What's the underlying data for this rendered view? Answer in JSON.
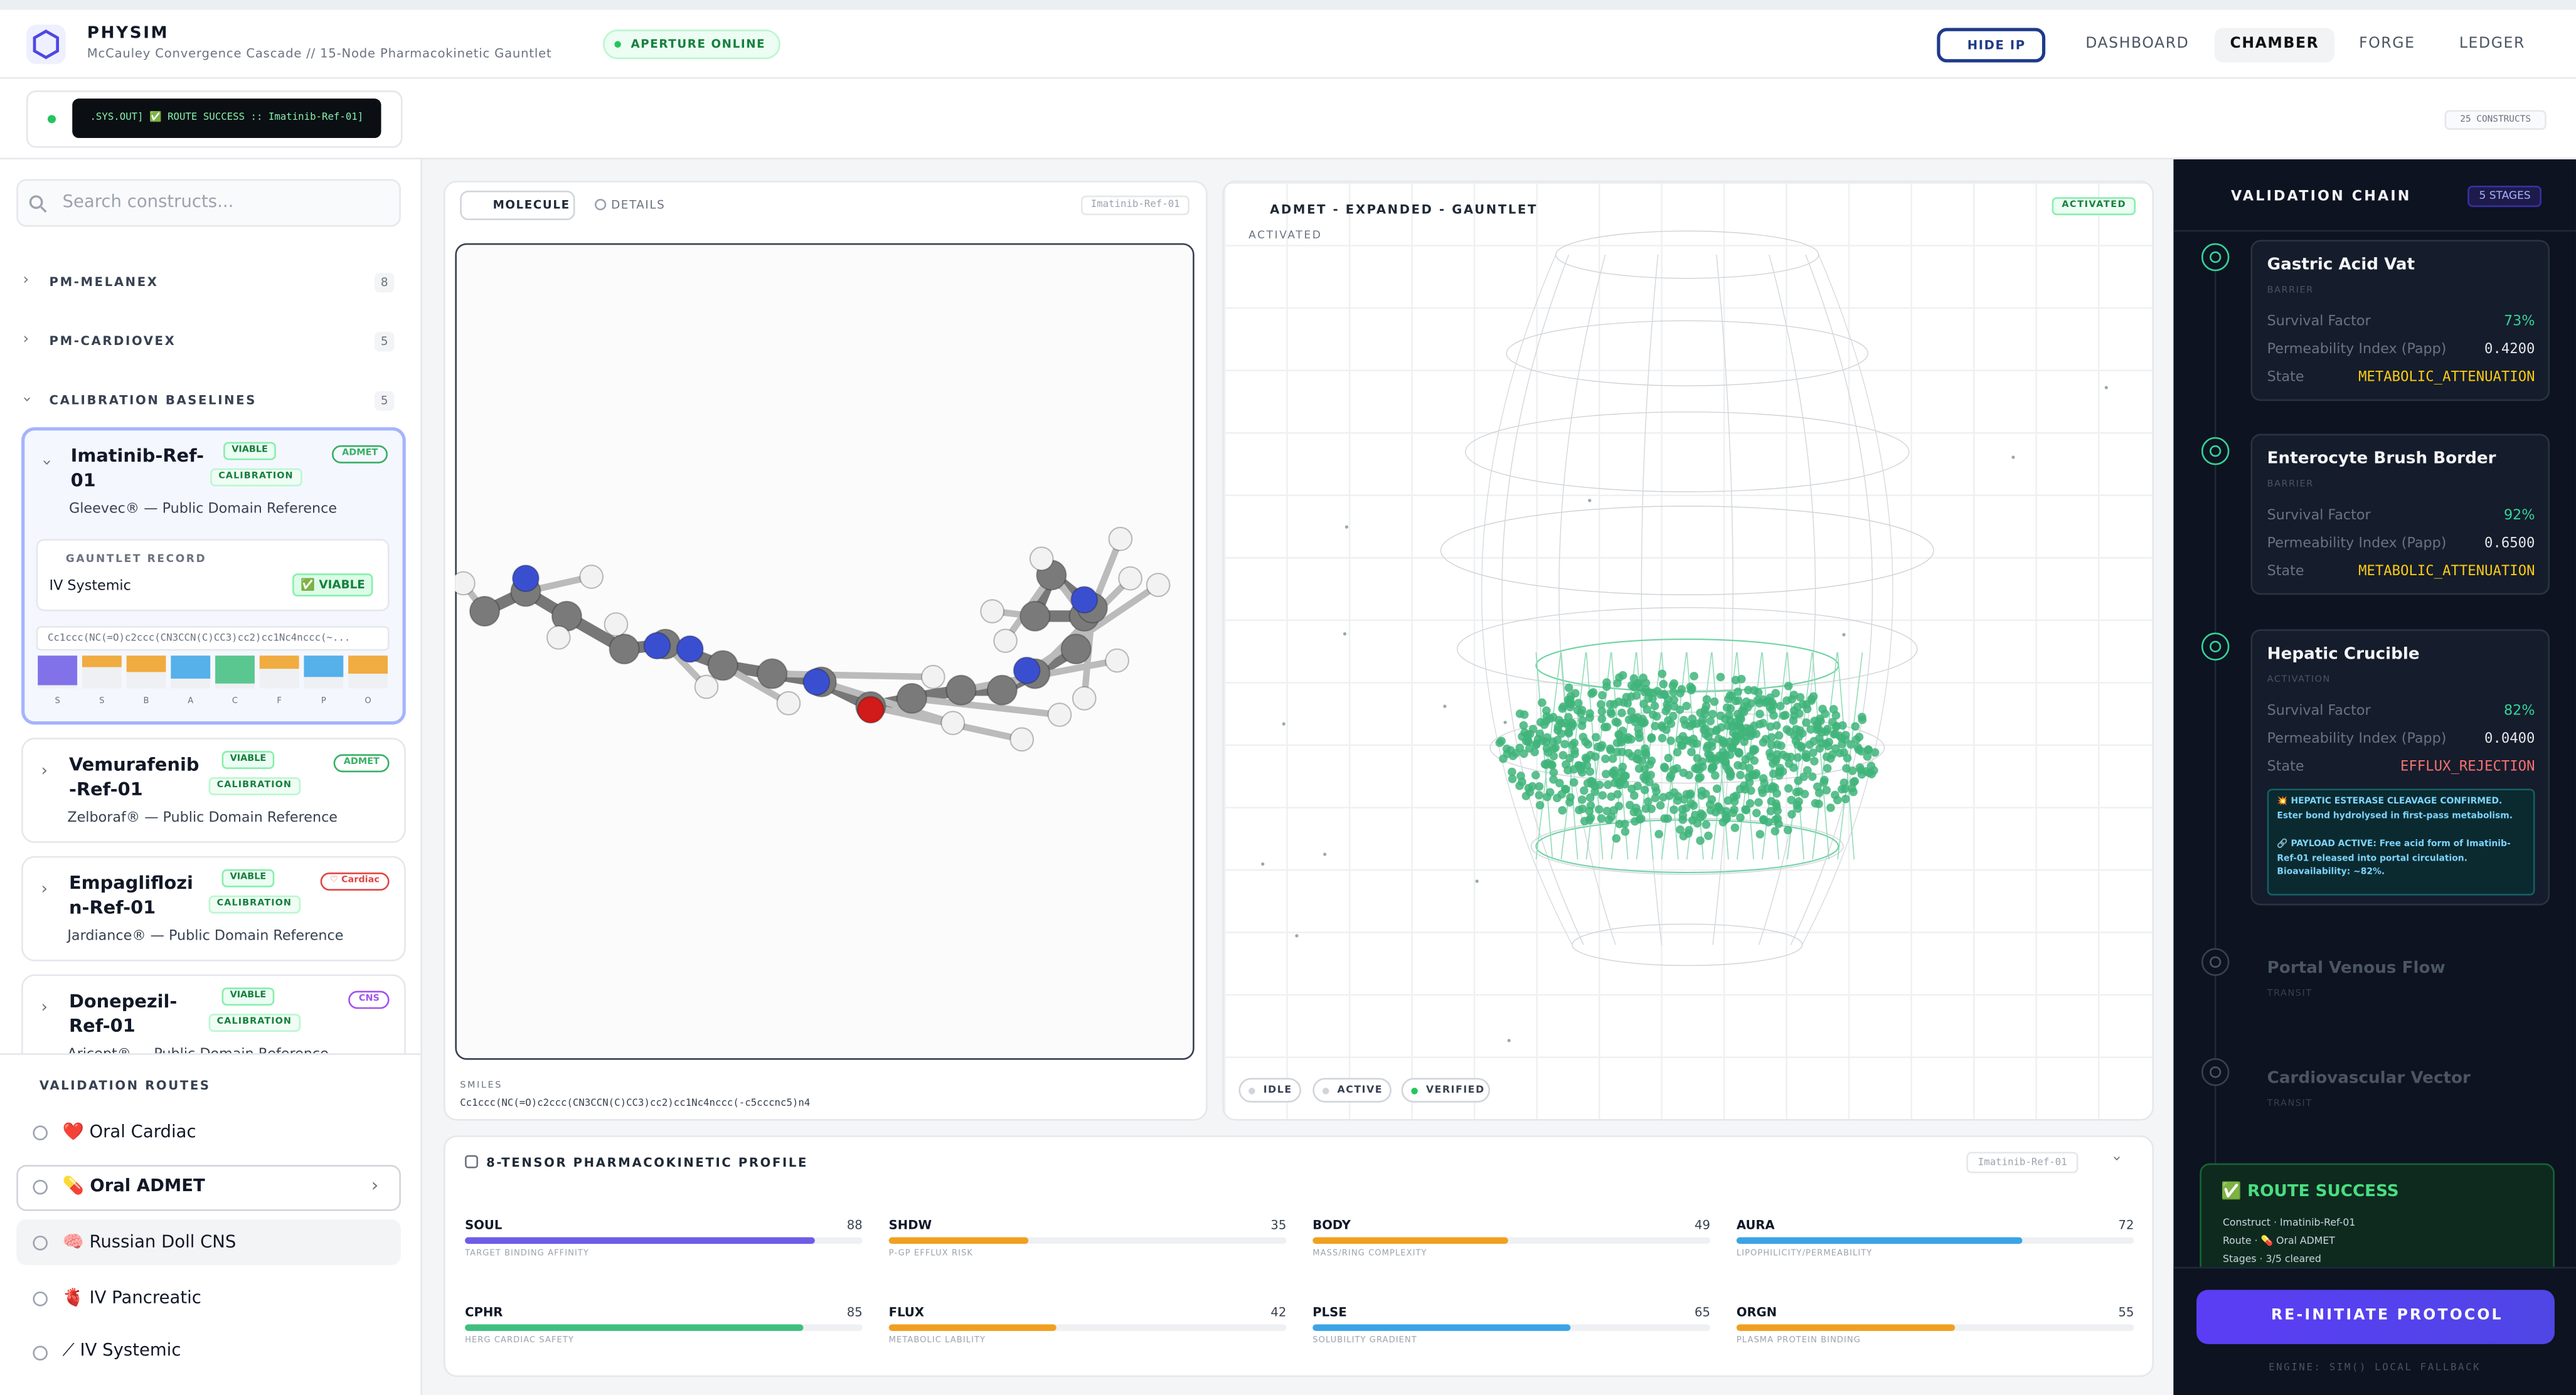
{
  "header": {
    "brand": "PHYSIM",
    "subtitle": "McCauley Convergence Cascade // 15-Node Pharmacokinetic Gauntlet",
    "status": "APERTURE ONLINE",
    "hide_ip": "HIDE IP",
    "nav": [
      "DASHBOARD",
      "CHAMBER",
      "FORGE",
      "LEDGER"
    ],
    "active_nav": 1
  },
  "console": {
    "message": ".SYS.OUT] ✅ ROUTE SUCCESS :: Imatinib-Ref-01]",
    "count": "25 CONSTRUCTS"
  },
  "sidebar": {
    "search_placeholder": "Search constructs...",
    "groups": [
      {
        "name": "PM-MELANEX",
        "count": 8
      },
      {
        "name": "PM-CARDIOVEX",
        "count": 5
      },
      {
        "name": "CALIBRATION BASELINES",
        "count": 5
      }
    ],
    "constructs": [
      {
        "name": "Imatinib-Ref-01",
        "badges": [
          "VIABLE",
          "CALIBRATION"
        ],
        "tag": "ADMET",
        "tag_color": "#16a34a",
        "desc": "Gleevec® — Public Domain Reference"
      },
      {
        "name": "Vemurafenib-Ref-01",
        "badges": [
          "VIABLE",
          "CALIBRATION"
        ],
        "tag": "ADMET",
        "tag_color": "#16a34a",
        "desc": "Zelboraf® — Public Domain Reference"
      },
      {
        "name": "Empagliflozin-Ref-01",
        "badges": [
          "VIABLE",
          "CALIBRATION"
        ],
        "tag": "♡ Cardiac",
        "tag_color": "#dc2626",
        "desc": "Jardiance® — Public Domain Reference"
      },
      {
        "name": "Donepezil-Ref-01",
        "badges": [
          "VIABLE",
          "CALIBRATION"
        ],
        "tag": "CNS",
        "tag_color": "#9333ea",
        "desc": "Aricept® — Public Domain Reference"
      }
    ],
    "gauntlet": {
      "title": "GAUNTLET RECORD",
      "route": "IV Systemic",
      "status": "✅ VIABLE",
      "smiles": "Cc1ccc(NC(=O)c2ccc(CN3CCN(C)CC3)cc2)cc1Nc4nccc(~...",
      "letters": [
        "S",
        "S",
        "B",
        "A",
        "C",
        "F",
        "P",
        "O"
      ]
    },
    "routes_title": "VALIDATION ROUTES",
    "routes": [
      "❤️ Oral Cardiac",
      "💊 Oral ADMET",
      "🧠 Russian Doll CNS",
      "🫀 IV Pancreatic",
      "⟋ IV Systemic"
    ],
    "active_route": 1
  },
  "molecule": {
    "tabs": [
      "MOLECULE",
      "DETAILS"
    ],
    "label": "Imatinib-Ref-01",
    "smiles_title": "SMILES",
    "smiles": "Cc1ccc(NC(=O)c2ccc(CN3CCN(C)CC3)cc2)cc1Nc4nccc(-c5cccnc5)n4"
  },
  "admet": {
    "title": "ADMET - EXPANDED - GAUNTLET",
    "badge": "ACTIVATED",
    "subtitle": "ACTIVATED",
    "legend": [
      "IDLE",
      "ACTIVE",
      "VERIFIED"
    ]
  },
  "profile": {
    "title": "8-TENSOR PHARMACOKINETIC PROFILE",
    "label": "Imatinib-Ref-01",
    "xlim": [
      0,
      100
    ],
    "tensors": [
      {
        "name": "SOUL",
        "value": 88,
        "desc": "TARGET BINDING AFFINITY",
        "color": "#6d5ce8"
      },
      {
        "name": "SHDW",
        "value": 35,
        "desc": "P-GP EFFLUX RISK",
        "color": "#f0a020"
      },
      {
        "name": "BODY",
        "value": 49,
        "desc": "MASS/RING COMPLEXITY",
        "color": "#f0a020"
      },
      {
        "name": "AURA",
        "value": 72,
        "desc": "LIPOPHILICITY/PERMEABILITY",
        "color": "#3ba4e6"
      },
      {
        "name": "CPHR",
        "value": 85,
        "desc": "HERG CARDIAC SAFETY",
        "color": "#3fbf7f"
      },
      {
        "name": "FLUX",
        "value": 42,
        "desc": "METABOLIC LABILITY",
        "color": "#f0a020"
      },
      {
        "name": "PLSE",
        "value": 65,
        "desc": "SOLUBILITY GRADIENT",
        "color": "#3ba4e6"
      },
      {
        "name": "ORGN",
        "value": 55,
        "desc": "PLASMA PROTEIN BINDING",
        "color": "#f0a020"
      }
    ]
  },
  "chain": {
    "title": "VALIDATION CHAIN",
    "count": "5 STAGES",
    "labels": [
      "Survival Factor",
      "Permeability Index (Papp)",
      "State"
    ],
    "stages": [
      {
        "name": "Gastric Acid Vat",
        "kind": "BARRIER",
        "survival": "73%",
        "papp": "0.4200",
        "state": "METABOLIC_ATTENUATION",
        "state_color": "#facc15"
      },
      {
        "name": "Enterocyte Brush Border",
        "kind": "BARRIER",
        "survival": "92%",
        "papp": "0.6500",
        "state": "METABOLIC_ATTENUATION",
        "state_color": "#facc15"
      },
      {
        "name": "Hepatic Crucible",
        "kind": "ACTIVATION",
        "survival": "82%",
        "papp": "0.0400",
        "state": "EFFLUX_REJECTION",
        "state_color": "#f87171",
        "note": [
          "💥 HEPATIC ESTERASE CLEAVAGE CONFIRMED. Ester bond hydrolysed in first-pass metabolism.",
          "🔗 PAYLOAD ACTIVE: Free acid form of Imatinib-Ref-01 released into portal circulation. Bioavailability: ~82%."
        ]
      },
      {
        "name": "Portal Venous Flow",
        "kind": "TRANSIT"
      },
      {
        "name": "Cardiovascular Vector",
        "kind": "TRANSIT"
      }
    ],
    "success": {
      "title": "✅ ROUTE SUCCESS",
      "lines": [
        "Construct · Imatinib-Ref-01",
        "Route · 💊 Oral ADMET",
        "Stages · 3/5 cleared"
      ]
    },
    "button": "RE-INITIATE PROTOCOL",
    "footer": "ENGINE: SIM() LOCAL FALLBACK"
  }
}
